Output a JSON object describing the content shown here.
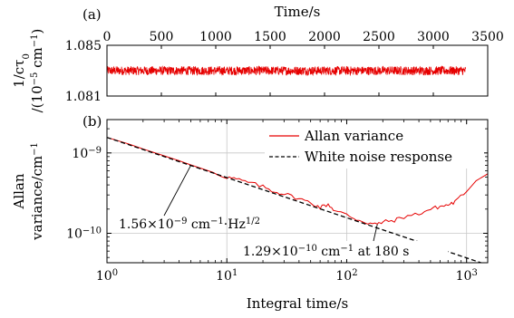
{
  "chart_data": [
    {
      "panel": "(a)",
      "type": "line",
      "xlabel": "Time/s",
      "ylabel": [
        "1/cτ",
        "0",
        "/(10",
        "−5",
        " cm",
        "−1",
        ")"
      ],
      "xlim": [
        0,
        3500
      ],
      "ylim": [
        1.081,
        1.085
      ],
      "x_ticks": [
        0,
        500,
        1000,
        1500,
        2000,
        2500,
        3000,
        3500
      ],
      "y_ticks": [
        1.081,
        1.085
      ],
      "y_tick_labels": [
        "1.081",
        "1.085"
      ],
      "series": [
        {
          "color": "#e60000",
          "mean": 1.083,
          "noise_amplitude": 0.00035,
          "x_start": 0,
          "x_end": 3300
        }
      ]
    },
    {
      "panel": "(b)",
      "type": "line",
      "xscale": "log",
      "yscale": "log",
      "xlabel": "Integral time/s",
      "ylabel": [
        "Allan",
        "variance/cm",
        "−1"
      ],
      "xlim": [
        1,
        1500
      ],
      "ylim": [
        4.3e-11,
        2.6e-09
      ],
      "x_ticks": [
        1,
        10,
        100,
        1000
      ],
      "x_tick_labels": [
        [
          "10",
          "0"
        ],
        [
          "10",
          "1"
        ],
        [
          "10",
          "2"
        ],
        [
          "10",
          "3"
        ]
      ],
      "y_ticks": [
        1e-10,
        1e-09
      ],
      "y_tick_labels": [
        [
          "10",
          "−10"
        ],
        [
          "10",
          "−9"
        ]
      ],
      "grid": true,
      "legend_position": "top-right",
      "series": [
        {
          "name": "Allan variance",
          "color": "#e60000",
          "style": "solid",
          "x": [
            1,
            1.5,
            2,
            3,
            4,
            5,
            7,
            10,
            12,
            15,
            20,
            25,
            30,
            40,
            50,
            60,
            70,
            80,
            100,
            120,
            150,
            180,
            200,
            250,
            300,
            400,
            500,
            600,
            700,
            800,
            1000,
            1200,
            1500
          ],
          "y": [
            1.56e-09,
            1.3e-09,
            1.12e-09,
            9.2e-10,
            8e-10,
            7.1e-10,
            6e-10,
            5e-10,
            4.7e-10,
            4.3e-10,
            3.8e-10,
            3.3e-10,
            3.1e-10,
            2.7e-10,
            2.4e-10,
            2.1e-10,
            2.3e-10,
            1.9e-10,
            1.7e-10,
            1.5e-10,
            1.35e-10,
            1.29e-10,
            1.38e-10,
            1.45e-10,
            1.6e-10,
            1.75e-10,
            2e-10,
            2.15e-10,
            2.25e-10,
            2.45e-10,
            3.3e-10,
            4.5e-10,
            5.5e-10
          ]
        },
        {
          "name": "White noise response",
          "color": "#000000",
          "style": "dashed",
          "x": [
            1,
            1500
          ],
          "y": [
            1.56e-09,
            4.03e-11
          ]
        }
      ],
      "annotations": [
        {
          "text": [
            "1.56×10",
            "−9",
            " cm",
            "−1",
            "·Hz",
            "1/2"
          ],
          "arrow_to": [
            5,
            6.98e-10
          ]
        },
        {
          "text": [
            "1.29×10",
            "−10",
            " cm",
            "−1",
            " at 180 s"
          ],
          "arrow_to": [
            180,
            1.29e-10
          ]
        }
      ]
    }
  ]
}
